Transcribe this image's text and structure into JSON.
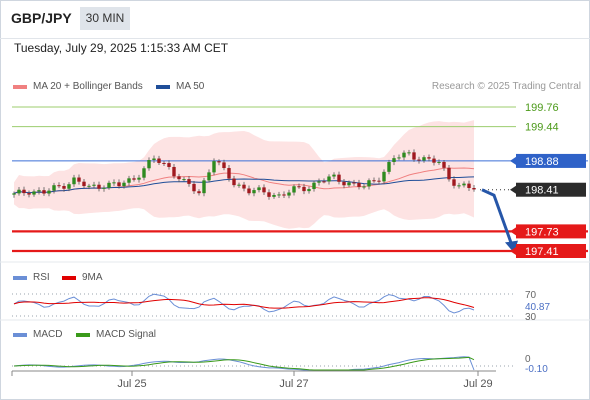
{
  "header": {
    "pair": "GBP/JPY",
    "timeframe": "30 MIN",
    "timestamp": "Tuesday, July 29, 2025 1:15:33 AM CET"
  },
  "legend": {
    "bb": "MA 20 + Bollinger Bands",
    "ma50": "MA 50",
    "credit": "Research © 2025 Trading Central",
    "bb_color": "#f08080",
    "ma50_color": "#1f4e99"
  },
  "levels": [
    {
      "value": "199.76",
      "style": "green-text"
    },
    {
      "value": "199.44",
      "style": "green-text"
    },
    {
      "value": "198.88",
      "style": "blue-box"
    },
    {
      "value": "198.41",
      "style": "dark-box"
    },
    {
      "value": "197.73",
      "style": "red-box"
    },
    {
      "value": "197.41",
      "style": "red-box"
    }
  ],
  "rsi": {
    "label": "RSI",
    "ma_label": "9MA",
    "level_70": "70",
    "value": "40.87",
    "level_30": "30",
    "rsi_color": "#6b8fd6",
    "ma_color": "#e00000"
  },
  "macd": {
    "label": "MACD",
    "signal_label": "MACD Signal",
    "level_zero": "0",
    "value": "-0.10",
    "macd_color": "#6b8fd6",
    "signal_color": "#3a9a1a"
  },
  "x_axis": {
    "labels": [
      "Jul 25",
      "Jul 27",
      "Jul 29"
    ]
  },
  "chart_data": [
    {
      "type": "line",
      "title": "GBP/JPY 30 MIN",
      "xlabel": "",
      "ylabel": "",
      "ylim": [
        197.2,
        200.0
      ],
      "grid": false,
      "legend": "top-left",
      "key_levels": [
        199.76,
        199.44,
        198.88,
        197.73,
        197.41
      ],
      "current_price": 198.41,
      "projected_path": [
        198.41,
        197.73,
        197.41
      ],
      "series": [
        {
          "name": "MA 20 + Bollinger Bands",
          "type": "band"
        },
        {
          "name": "MA 50",
          "type": "line"
        }
      ]
    },
    {
      "type": "line",
      "series": [
        {
          "name": "RSI",
          "current": 40.87
        },
        {
          "name": "9MA"
        }
      ],
      "reference_lines": [
        70,
        30
      ]
    },
    {
      "type": "line",
      "series": [
        {
          "name": "MACD",
          "current": -0.1
        },
        {
          "name": "MACD Signal"
        }
      ],
      "reference_lines": [
        0
      ]
    }
  ]
}
